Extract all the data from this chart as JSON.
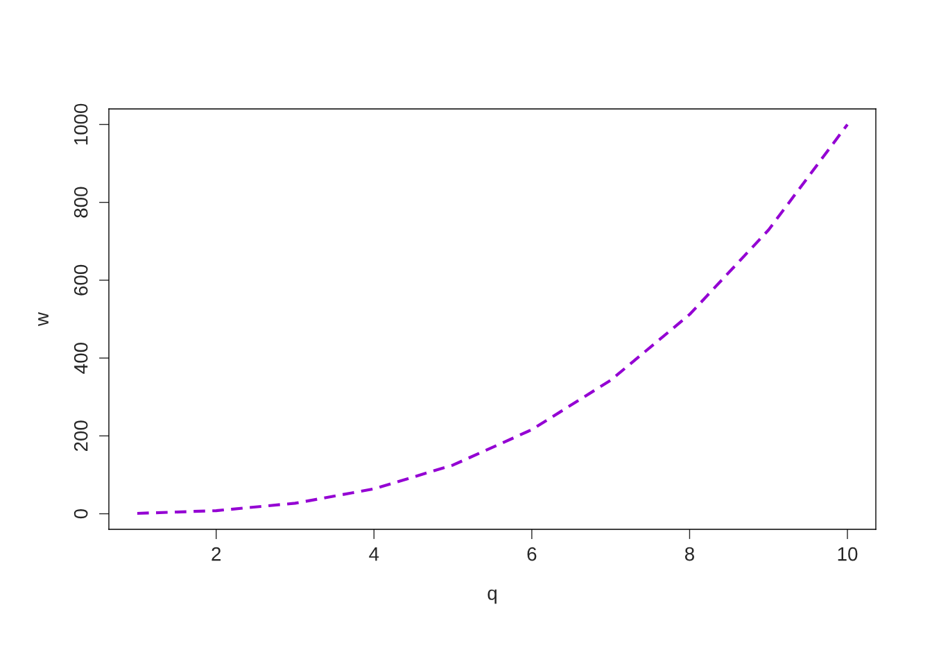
{
  "chart_data": {
    "type": "line",
    "xlabel": "q",
    "ylabel": "w",
    "x": [
      1,
      2,
      3,
      4,
      5,
      6,
      7,
      8,
      9,
      10
    ],
    "series": [
      {
        "color": "#9400d3",
        "values": [
          1,
          8,
          27,
          64,
          125,
          216,
          343,
          512,
          729,
          1000
        ]
      }
    ],
    "xlim": [
      0.64,
      10.36
    ],
    "ylim": [
      -40,
      1040
    ],
    "xticks": [
      2,
      4,
      6,
      8,
      10
    ],
    "yticks": [
      0,
      200,
      400,
      600,
      800,
      1000
    ],
    "line_style": "dashed",
    "marker": "none",
    "grid": false
  }
}
